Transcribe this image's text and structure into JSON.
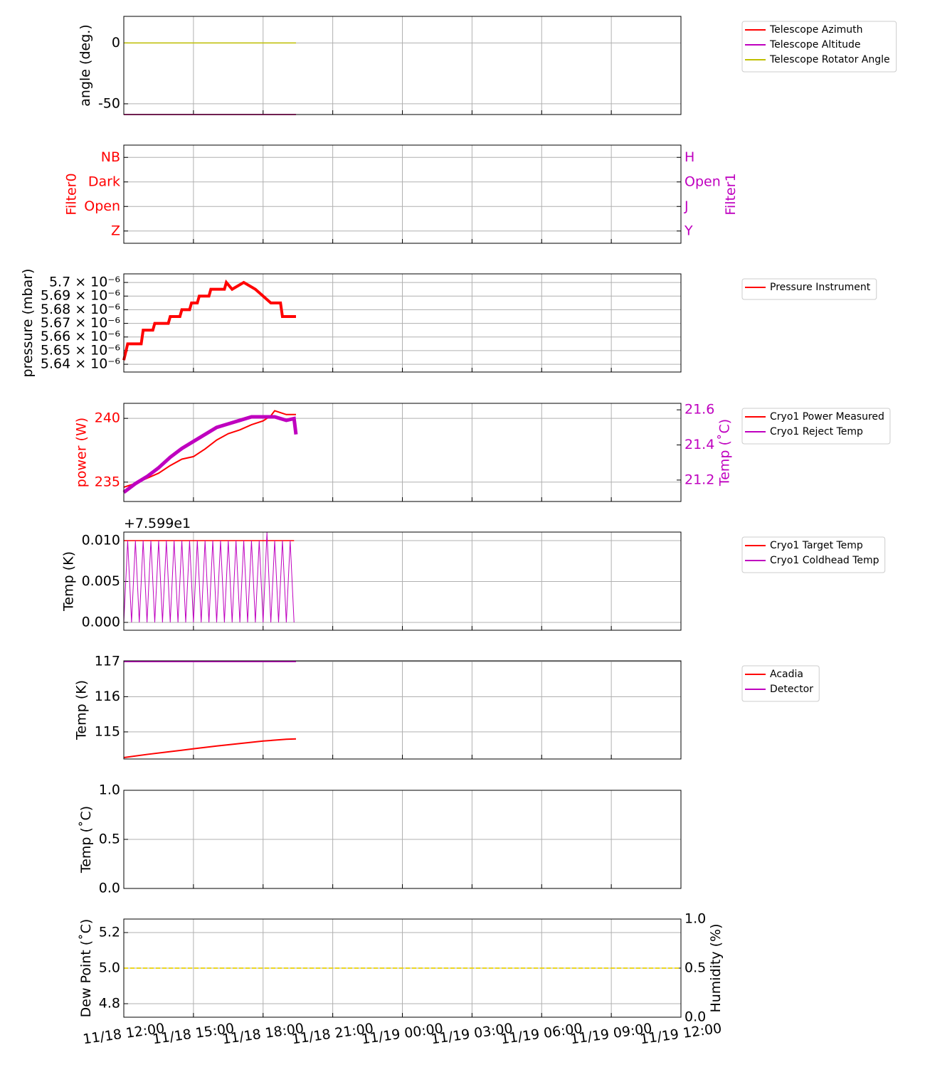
{
  "chart_data": [
    {
      "type": "line",
      "ylabel": "angle (deg.)",
      "ylim": [
        -58.8,
        21.8
      ],
      "yticks": [
        -50,
        0
      ],
      "grid": true,
      "legend": "outside right",
      "xlim": [
        "11/18 12:00",
        "11/19 12:00"
      ],
      "xticks": [
        "11/18 12:00",
        "11/18 15:00",
        "11/18 18:00",
        "11/18 21:00",
        "11/19 00:00",
        "11/19 03:00",
        "11/19 06:00",
        "11/19 09:00",
        "11/19 12:00"
      ],
      "series": [
        {
          "name": "Telescope Azimuth",
          "color": "#ff0000",
          "x": [
            "11/18 12:00",
            "11/18 19:25"
          ],
          "values": [
            -58.8,
            -58.8
          ]
        },
        {
          "name": "Telescope Altitude",
          "color": "#bf00bf",
          "x": [
            "11/18 12:00",
            "11/18 19:25"
          ],
          "values": [
            -58.8,
            -58.8
          ]
        },
        {
          "name": "Telescope Rotator Angle",
          "color": "#bfbf00",
          "x": [
            "11/18 12:00",
            "11/18 19:25"
          ],
          "values": [
            0,
            0
          ]
        }
      ]
    },
    {
      "type": "line",
      "ylabel": "Filter0",
      "ylabel_color": "#ff0000",
      "y2label": "Filter1",
      "y2label_color": "#bf00bf",
      "ylim": [
        -0.5,
        3.5
      ],
      "y2lim": [
        -0.5,
        3.5
      ],
      "yticks": [
        {
          "value": 0,
          "label": "Z"
        },
        {
          "value": 1,
          "label": "Open"
        },
        {
          "value": 2,
          "label": "Dark"
        },
        {
          "value": 3,
          "label": "NB"
        }
      ],
      "y2ticks": [
        {
          "value": 0,
          "label": "Y"
        },
        {
          "value": 1,
          "label": "J"
        },
        {
          "value": 2,
          "label": "Open"
        },
        {
          "value": 3,
          "label": "H"
        }
      ],
      "grid": true,
      "xlim": [
        "11/18 12:00",
        "11/19 12:00"
      ],
      "xticks": [
        "11/18 12:00",
        "11/18 15:00",
        "11/18 18:00",
        "11/18 21:00",
        "11/19 00:00",
        "11/19 03:00",
        "11/19 06:00",
        "11/19 09:00",
        "11/19 12:00"
      ],
      "series": []
    },
    {
      "type": "line",
      "ylabel": "pressure (mbar)",
      "ylim": [
        5.6343e-06,
        5.7063e-06
      ],
      "grid": true,
      "legend": "outside right",
      "yticks": [
        {
          "value": 5.64e-06,
          "label": "5.64 × 10⁻⁶"
        },
        {
          "value": 5.65e-06,
          "label": "5.65 × 10⁻⁶"
        },
        {
          "value": 5.66e-06,
          "label": "5.66 × 10⁻⁶"
        },
        {
          "value": 5.67e-06,
          "label": "5.67 × 10⁻⁶"
        },
        {
          "value": 5.68e-06,
          "label": "5.68 × 10⁻⁶"
        },
        {
          "value": 5.69e-06,
          "label": "5.69 × 10⁻⁶"
        },
        {
          "value": 5.7e-06,
          "label": "5.7 × 10⁻⁶"
        }
      ],
      "xlim": [
        "11/18 12:00",
        "11/19 12:00"
      ],
      "xticks": [
        "11/18 12:00",
        "11/18 15:00",
        "11/18 18:00",
        "11/18 21:00",
        "11/19 00:00",
        "11/19 03:00",
        "11/19 06:00",
        "11/19 09:00",
        "11/19 12:00"
      ],
      "series": [
        {
          "name": "Pressure Instrument",
          "color": "#ff0000",
          "width": 4,
          "x": [
            "11/18 12:00",
            "11/18 12:10",
            "11/18 12:45",
            "11/18 12:50",
            "11/18 13:15",
            "11/18 13:20",
            "11/18 13:55",
            "11/18 14:00",
            "11/18 14:25",
            "11/18 14:30",
            "11/18 14:50",
            "11/18 14:55",
            "11/18 15:10",
            "11/18 15:15",
            "11/18 15:40",
            "11/18 15:45",
            "11/18 16:20",
            "11/18 16:25",
            "11/18 16:40",
            "11/18 17:10",
            "11/18 17:40",
            "11/18 18:00",
            "11/18 18:20",
            "11/18 18:45",
            "11/18 18:50",
            "11/18 19:25"
          ],
          "values": [
            5.643e-06,
            5.655e-06,
            5.655e-06,
            5.665e-06,
            5.665e-06,
            5.67e-06,
            5.67e-06,
            5.675e-06,
            5.675e-06,
            5.68e-06,
            5.68e-06,
            5.685e-06,
            5.685e-06,
            5.69e-06,
            5.69e-06,
            5.695e-06,
            5.695e-06,
            5.7e-06,
            5.695e-06,
            5.7e-06,
            5.695e-06,
            5.69e-06,
            5.685e-06,
            5.685e-06,
            5.675e-06,
            5.675e-06
          ]
        }
      ]
    },
    {
      "type": "line",
      "ylabel": "power (W)",
      "ylabel_color": "#ff0000",
      "y2label": "Temp (˚C)",
      "y2label_color": "#bf00bf",
      "ylim": [
        233.48,
        241.18
      ],
      "yticks": [
        235,
        240
      ],
      "y2lim": [
        21.078,
        21.637
      ],
      "y2ticks": [
        {
          "value": 21.2,
          "label": "21.2"
        },
        {
          "value": 21.4,
          "label": "21.4"
        },
        {
          "value": 21.6,
          "label": "21.6"
        }
      ],
      "grid": true,
      "legend": "outside right",
      "xlim": [
        "11/18 12:00",
        "11/19 12:00"
      ],
      "xticks": [
        "11/18 12:00",
        "11/18 15:00",
        "11/18 18:00",
        "11/18 21:00",
        "11/19 00:00",
        "11/19 03:00",
        "11/19 06:00",
        "11/19 09:00",
        "11/19 12:00"
      ],
      "series": [
        {
          "name": "Cryo1 Power Measured",
          "color": "#ff0000",
          "width": 2,
          "x": [
            "11/18 12:00",
            "11/18 12:30",
            "11/18 13:00",
            "11/18 13:30",
            "11/18 14:00",
            "11/18 14:30",
            "11/18 15:00",
            "11/18 15:30",
            "11/18 16:00",
            "11/18 16:30",
            "11/18 17:00",
            "11/18 17:30",
            "11/18 18:00",
            "11/18 18:20",
            "11/18 18:30",
            "11/18 19:00",
            "11/18 19:25"
          ],
          "values": [
            234.6,
            234.9,
            235.3,
            235.7,
            236.3,
            236.8,
            237.0,
            237.6,
            238.3,
            238.8,
            239.1,
            239.5,
            239.8,
            240.2,
            240.6,
            240.3,
            240.3
          ]
        },
        {
          "name": "Cryo1 Reject Temp",
          "color": "#bf00bf",
          "axis": "y2",
          "width": 5,
          "x": [
            "11/18 12:00",
            "11/18 12:30",
            "11/18 13:00",
            "11/18 13:30",
            "11/18 14:00",
            "11/18 14:30",
            "11/18 15:00",
            "11/18 15:30",
            "11/18 16:00",
            "11/18 16:30",
            "11/18 17:00",
            "11/18 17:30",
            "11/18 18:00",
            "11/18 18:30",
            "11/18 19:00",
            "11/18 19:20",
            "11/18 19:25"
          ],
          "values": [
            21.13,
            21.18,
            21.22,
            21.27,
            21.33,
            21.38,
            21.42,
            21.46,
            21.5,
            21.52,
            21.54,
            21.56,
            21.56,
            21.56,
            21.54,
            21.55,
            21.46
          ]
        }
      ]
    },
    {
      "type": "line",
      "ylabel": "Temp (K)",
      "offset_text": "+7.599e1",
      "ylim": [
        -0.00096,
        0.01104
      ],
      "grid": true,
      "legend": "outside right",
      "yticks": [
        {
          "value": 0,
          "label": "0.000"
        },
        {
          "value": 0.005,
          "label": "0.005"
        },
        {
          "value": 0.01,
          "label": "0.010"
        }
      ],
      "xlim": [
        "11/18 12:00",
        "11/19 12:00"
      ],
      "xticks": [
        "11/18 12:00",
        "11/18 15:00",
        "11/18 18:00",
        "11/18 21:00",
        "11/19 00:00",
        "11/19 03:00",
        "11/19 06:00",
        "11/19 09:00",
        "11/19 12:00"
      ],
      "series": [
        {
          "name": "Cryo1 Target Temp",
          "color": "#ff0000",
          "x": [
            "11/18 12:00",
            "11/18 19:20"
          ],
          "values": [
            0.01,
            0.01
          ]
        },
        {
          "name": "Cryo1 Coldhead Temp",
          "color": "#bf00bf",
          "width": 1,
          "x": [
            "11/18 12:00",
            "11/18 12:10",
            "11/18 12:20",
            "11/18 12:30",
            "11/18 12:40",
            "11/18 12:50",
            "11/18 13:00",
            "11/18 13:10",
            "11/18 13:20",
            "11/18 13:30",
            "11/18 13:40",
            "11/18 13:50",
            "11/18 14:00",
            "11/18 14:10",
            "11/18 14:20",
            "11/18 14:30",
            "11/18 14:40",
            "11/18 14:50",
            "11/18 15:00",
            "11/18 15:10",
            "11/18 15:20",
            "11/18 15:30",
            "11/18 15:40",
            "11/18 15:50",
            "11/18 16:00",
            "11/18 16:10",
            "11/18 16:20",
            "11/18 16:30",
            "11/18 16:40",
            "11/18 16:50",
            "11/18 17:00",
            "11/18 17:10",
            "11/18 17:20",
            "11/18 17:30",
            "11/18 17:40",
            "11/18 17:50",
            "11/18 18:00",
            "11/18 18:10",
            "11/18 18:20",
            "11/18 18:30",
            "11/18 18:40",
            "11/18 18:50",
            "11/18 19:00",
            "11/18 19:10",
            "11/18 19:20"
          ],
          "values": [
            0,
            0.01,
            0,
            0.01,
            0,
            0.01,
            0,
            0.01,
            0,
            0.01,
            0,
            0.01,
            0,
            0.01,
            0,
            0.01,
            0,
            0.01,
            0,
            0.01,
            0,
            0.01,
            0,
            0.01,
            0,
            0.01,
            0,
            0.01,
            0,
            0.01,
            0,
            0.01,
            0,
            0.01,
            0,
            0.01,
            0,
            0.011,
            0,
            0.01,
            0,
            0.01,
            0,
            0.01,
            0
          ]
        }
      ]
    },
    {
      "type": "line",
      "ylabel": "Temp (K)",
      "ylim": [
        114.23,
        117.02
      ],
      "yticks": [
        115,
        116,
        117
      ],
      "grid": true,
      "legend": "outside right",
      "xlim": [
        "11/18 12:00",
        "11/19 12:00"
      ],
      "xticks": [
        "11/18 12:00",
        "11/18 15:00",
        "11/18 18:00",
        "11/18 21:00",
        "11/19 00:00",
        "11/19 03:00",
        "11/19 06:00",
        "11/19 09:00",
        "11/19 12:00"
      ],
      "series": [
        {
          "name": "Acadia",
          "color": "#ff0000",
          "width": 2,
          "x": [
            "11/18 12:00",
            "11/18 13:00",
            "11/18 14:00",
            "11/18 15:00",
            "11/18 16:00",
            "11/18 17:00",
            "11/18 18:00",
            "11/18 19:00",
            "11/18 19:25"
          ],
          "values": [
            114.27,
            114.36,
            114.44,
            114.52,
            114.6,
            114.67,
            114.74,
            114.79,
            114.8
          ]
        },
        {
          "name": "Detector",
          "color": "#bf00bf",
          "width": 2,
          "x": [
            "11/18 12:00",
            "11/18 19:25"
          ],
          "values": [
            117,
            117
          ]
        }
      ]
    },
    {
      "type": "line",
      "ylabel": "Temp (˚C)",
      "ylim": [
        0,
        1
      ],
      "grid": true,
      "yticks": [
        {
          "value": 0,
          "label": "0.0"
        },
        {
          "value": 0.5,
          "label": "0.5"
        },
        {
          "value": 1,
          "label": "1.0"
        }
      ],
      "xlim": [
        "11/18 12:00",
        "11/19 12:00"
      ],
      "xticks": [
        "11/18 12:00",
        "11/18 15:00",
        "11/18 18:00",
        "11/18 21:00",
        "11/19 00:00",
        "11/19 03:00",
        "11/19 06:00",
        "11/19 09:00",
        "11/19 12:00"
      ],
      "series": []
    },
    {
      "type": "line",
      "ylabel": "Dew Point (˚C)",
      "y2label": "Humidity (%)",
      "ylim": [
        4.724,
        5.276
      ],
      "y2lim": [
        0,
        1
      ],
      "grid": true,
      "xtick_labels": true,
      "yticks": [
        {
          "value": 4.8,
          "label": "4.8"
        },
        {
          "value": 5,
          "label": "5.0"
        },
        {
          "value": 5.2,
          "label": "5.2"
        }
      ],
      "y2ticks": [
        {
          "value": 0,
          "label": "0.0"
        },
        {
          "value": 0.5,
          "label": "0.5"
        },
        {
          "value": 1,
          "label": "1.0"
        }
      ],
      "xlim": [
        "11/18 12:00",
        "11/19 12:00"
      ],
      "xticks": [
        "11/18 12:00",
        "11/18 15:00",
        "11/18 18:00",
        "11/18 21:00",
        "11/19 00:00",
        "11/19 03:00",
        "11/19 06:00",
        "11/19 09:00",
        "11/19 12:00"
      ],
      "series": [
        {
          "color": "#ffa500",
          "dashed": true,
          "x": [
            "11/18 12:00",
            "11/19 12:00"
          ],
          "values": [
            5,
            5
          ]
        },
        {
          "color": "#e6d800",
          "dashed": true,
          "axis": "y2",
          "x": [
            "11/18 12:00",
            "11/19 12:00"
          ],
          "values": [
            0.5,
            0.5
          ]
        }
      ]
    }
  ]
}
